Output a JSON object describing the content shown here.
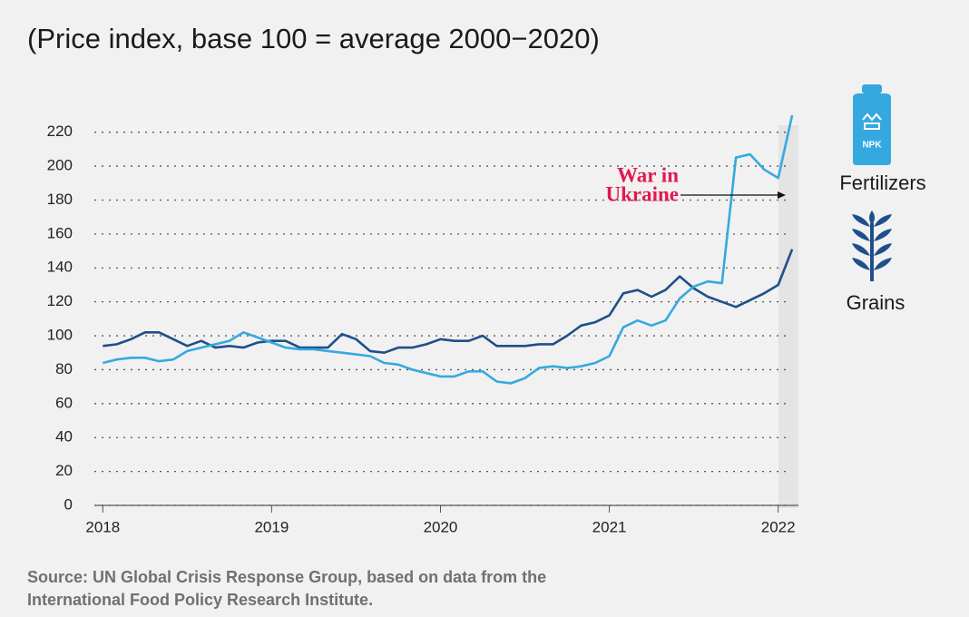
{
  "chart_data": {
    "type": "line",
    "title": "(Price index, base 100 = average 2000−2020)",
    "x": [
      2018,
      2018.083,
      2018.167,
      2018.25,
      2018.333,
      2018.417,
      2018.5,
      2018.583,
      2018.667,
      2018.75,
      2018.833,
      2018.917,
      2019,
      2019.083,
      2019.167,
      2019.25,
      2019.333,
      2019.417,
      2019.5,
      2019.583,
      2019.667,
      2019.75,
      2019.833,
      2019.917,
      2020,
      2020.083,
      2020.167,
      2020.25,
      2020.333,
      2020.417,
      2020.5,
      2020.583,
      2020.667,
      2020.75,
      2020.833,
      2020.917,
      2021,
      2021.083,
      2021.167,
      2021.25,
      2021.333,
      2021.417,
      2021.5,
      2021.583,
      2021.667,
      2021.75,
      2021.833,
      2021.917,
      2022,
      2022.083
    ],
    "series": [
      {
        "name": "Grains",
        "color": "#1f4f8a",
        "values": [
          94,
          95,
          98,
          102,
          102,
          98,
          94,
          97,
          93,
          94,
          93,
          96,
          97,
          97,
          93,
          93,
          93,
          101,
          98,
          91,
          90,
          93,
          93,
          95,
          98,
          97,
          97,
          100,
          94,
          94,
          94,
          95,
          95,
          100,
          106,
          108,
          112,
          125,
          127,
          123,
          127,
          135,
          128,
          123,
          120,
          117,
          121,
          125,
          130,
          151
        ]
      },
      {
        "name": "Fertilizers",
        "color": "#35a9df",
        "values": [
          84,
          86,
          87,
          87,
          85,
          86,
          91,
          93,
          95,
          97,
          102,
          99,
          96,
          93,
          92,
          92,
          91,
          90,
          89,
          88,
          84,
          83,
          80,
          78,
          76,
          76,
          79,
          79,
          73,
          72,
          75,
          81,
          82,
          81,
          82,
          84,
          88,
          105,
          109,
          106,
          109,
          122,
          129,
          132,
          131,
          205,
          207,
          198,
          193,
          230
        ]
      }
    ],
    "xlim": [
      2017.95,
      2022.12
    ],
    "xticks": [
      2018,
      2019,
      2020,
      2021,
      2022
    ],
    "ylim": [
      0,
      230
    ],
    "yticks": [
      0,
      20,
      40,
      60,
      80,
      100,
      120,
      140,
      160,
      180,
      200,
      220
    ],
    "grid": true,
    "annotation": [
      "War in",
      "Ukraine"
    ],
    "icon_label": "NPK",
    "source": [
      "Source: UN Global Crisis Response Group, based on data from the",
      "International Food Policy Research Institute."
    ]
  }
}
